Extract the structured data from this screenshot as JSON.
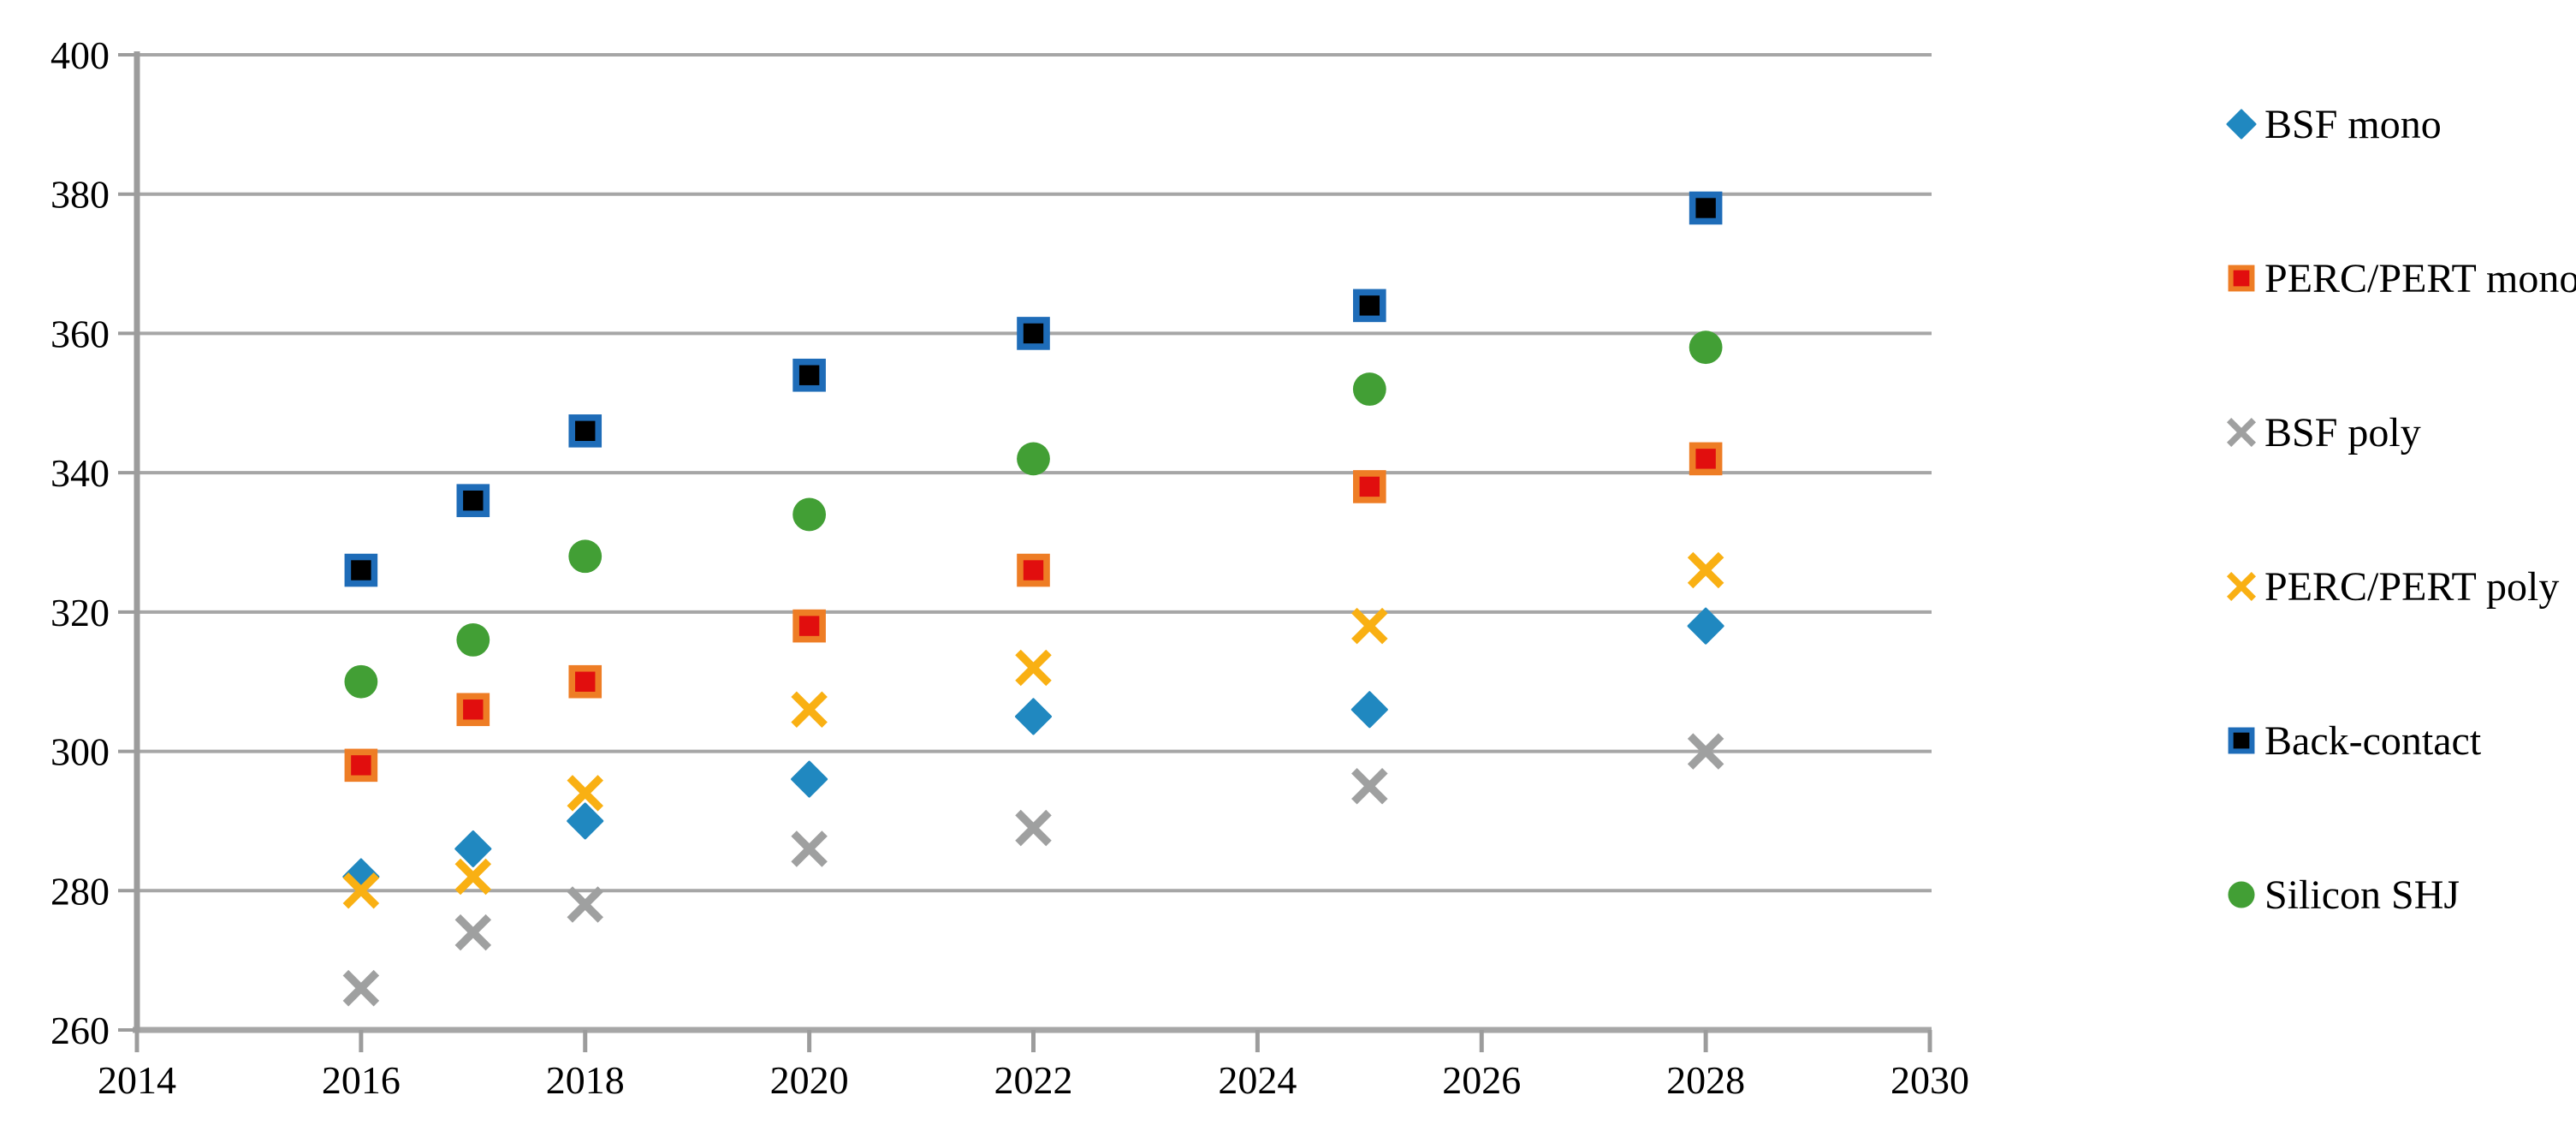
{
  "chart_data": {
    "type": "scatter",
    "title": "",
    "xlabel": "",
    "ylabel": "",
    "x_ticks": [
      2014,
      2016,
      2018,
      2020,
      2022,
      2024,
      2026,
      2028,
      2030
    ],
    "y_ticks": [
      260,
      280,
      300,
      320,
      340,
      360,
      380,
      400
    ],
    "xlim": [
      2014,
      2030
    ],
    "ylim": [
      260,
      400
    ],
    "grid": "horizontal-only",
    "legend_position": "right",
    "x": [
      2016,
      2017,
      2018,
      2020,
      2022,
      2025,
      2028
    ],
    "series": [
      {
        "id": "bsf-mono",
        "name": "BSF mono",
        "marker": "diamond",
        "color": "#2088C0",
        "values": [
          282,
          286,
          290,
          296,
          305,
          306,
          318
        ]
      },
      {
        "id": "perc-pert-mono",
        "name": "PERC/PERT mono",
        "marker": "square",
        "color": "#E10E0E",
        "border": "#EE7D25",
        "values": [
          298,
          306,
          310,
          318,
          326,
          338,
          342
        ]
      },
      {
        "id": "bsf-poly",
        "name": "BSF poly",
        "marker": "x",
        "color": "#9FA0A0",
        "values": [
          266,
          274,
          278,
          286,
          289,
          295,
          300
        ]
      },
      {
        "id": "perc-pert-poly",
        "name": "PERC/PERT poly",
        "marker": "x",
        "color": "#F9B013",
        "values": [
          280,
          282,
          294,
          306,
          312,
          318,
          326
        ]
      },
      {
        "id": "back-contact",
        "name": "Back-contact",
        "marker": "square",
        "color": "#000000",
        "border": "#1E6CB8",
        "values": [
          326,
          336,
          346,
          354,
          360,
          364,
          378
        ]
      },
      {
        "id": "silicon-shj",
        "name": "Silicon SHJ",
        "marker": "circle",
        "color": "#429F35",
        "values": [
          310,
          316,
          328,
          334,
          342,
          352,
          358
        ]
      }
    ],
    "style": {
      "grid_color": "#A6A6A6",
      "axis_color": "#9C9C9C",
      "text_color": "#000000"
    }
  }
}
